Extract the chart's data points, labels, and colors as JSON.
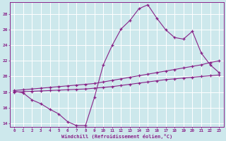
{
  "title": "",
  "xlabel": "Windchill (Refroidissement éolien,°C)",
  "bg_color": "#cde8ec",
  "grid_color": "#ffffff",
  "line_color": "#882288",
  "xlim": [
    -0.5,
    23.5
  ],
  "ylim": [
    13.5,
    29.5
  ],
  "xticks": [
    0,
    1,
    2,
    3,
    4,
    5,
    6,
    7,
    8,
    9,
    10,
    11,
    12,
    13,
    14,
    15,
    16,
    17,
    18,
    19,
    20,
    21,
    22,
    23
  ],
  "yticks": [
    14,
    16,
    18,
    20,
    22,
    24,
    26,
    28
  ],
  "series": [
    {
      "x": [
        0,
        1,
        2,
        3,
        4,
        5,
        6,
        7,
        8,
        9,
        10,
        11,
        12,
        13,
        14,
        15,
        16,
        17,
        18,
        19,
        20,
        21,
        22,
        23
      ],
      "y": [
        18.1,
        17.9,
        17.0,
        16.5,
        15.8,
        15.2,
        14.2,
        13.7,
        13.7,
        17.3,
        21.5,
        24.0,
        26.1,
        27.2,
        28.7,
        29.2,
        27.5,
        26.0,
        25.0,
        24.8,
        25.8,
        23.0,
        21.5,
        20.5
      ]
    },
    {
      "x": [
        0,
        1,
        2,
        3,
        4,
        5,
        6,
        7,
        8,
        9,
        10,
        11,
        12,
        13,
        14,
        15,
        16,
        17,
        18,
        19,
        20,
        21,
        22,
        23
      ],
      "y": [
        18.2,
        18.3,
        18.4,
        18.5,
        18.6,
        18.7,
        18.8,
        18.9,
        19.0,
        19.1,
        19.3,
        19.5,
        19.7,
        19.9,
        20.1,
        20.3,
        20.5,
        20.7,
        20.9,
        21.1,
        21.3,
        21.5,
        21.8,
        22.0
      ]
    },
    {
      "x": [
        0,
        1,
        2,
        3,
        4,
        5,
        6,
        7,
        8,
        9,
        10,
        11,
        12,
        13,
        14,
        15,
        16,
        17,
        18,
        19,
        20,
        21,
        22,
        23
      ],
      "y": [
        18.0,
        18.05,
        18.1,
        18.15,
        18.2,
        18.25,
        18.3,
        18.35,
        18.4,
        18.5,
        18.6,
        18.7,
        18.85,
        19.0,
        19.15,
        19.3,
        19.45,
        19.6,
        19.7,
        19.8,
        19.9,
        20.0,
        20.1,
        20.2
      ]
    }
  ]
}
